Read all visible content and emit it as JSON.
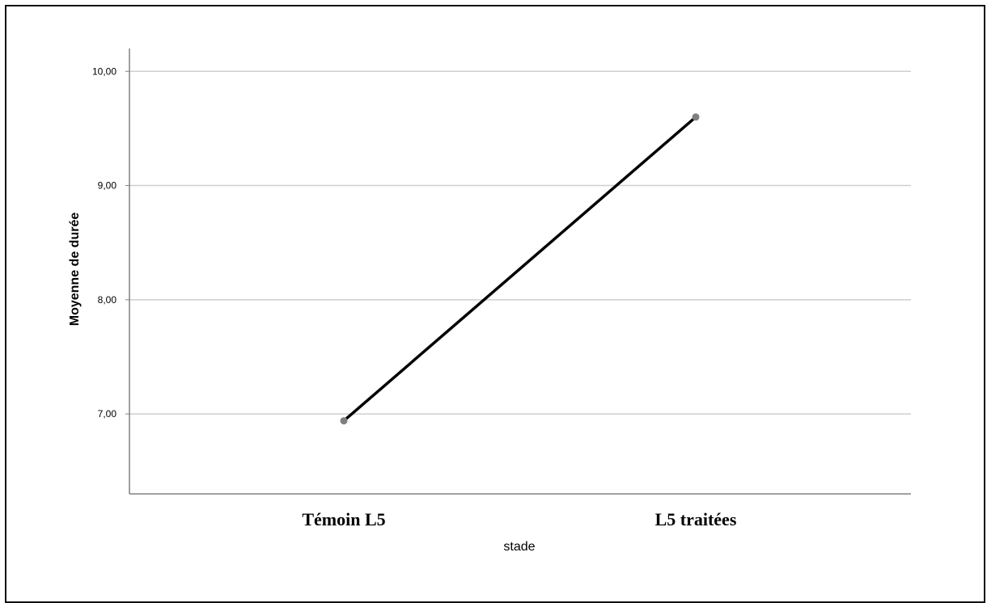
{
  "chart_data": {
    "type": "line",
    "title": "",
    "xlabel": "stade",
    "ylabel": "Moyenne de durée",
    "categories": [
      "Témoin L5",
      "L5 traitées"
    ],
    "series": [
      {
        "values": [
          6.94,
          9.6
        ]
      }
    ],
    "ylim": [
      6.3,
      10.2
    ],
    "yticks": [
      7.0,
      8.0,
      9.0,
      10.0
    ],
    "ytick_labels": [
      "7,00",
      "8,00",
      "9,00",
      "10,00"
    ],
    "grid": true,
    "legend": "none",
    "colors": {
      "line": "#000000",
      "marker": "#7f7f7f",
      "grid": "#cfcfcf",
      "axis": "#808080"
    }
  }
}
